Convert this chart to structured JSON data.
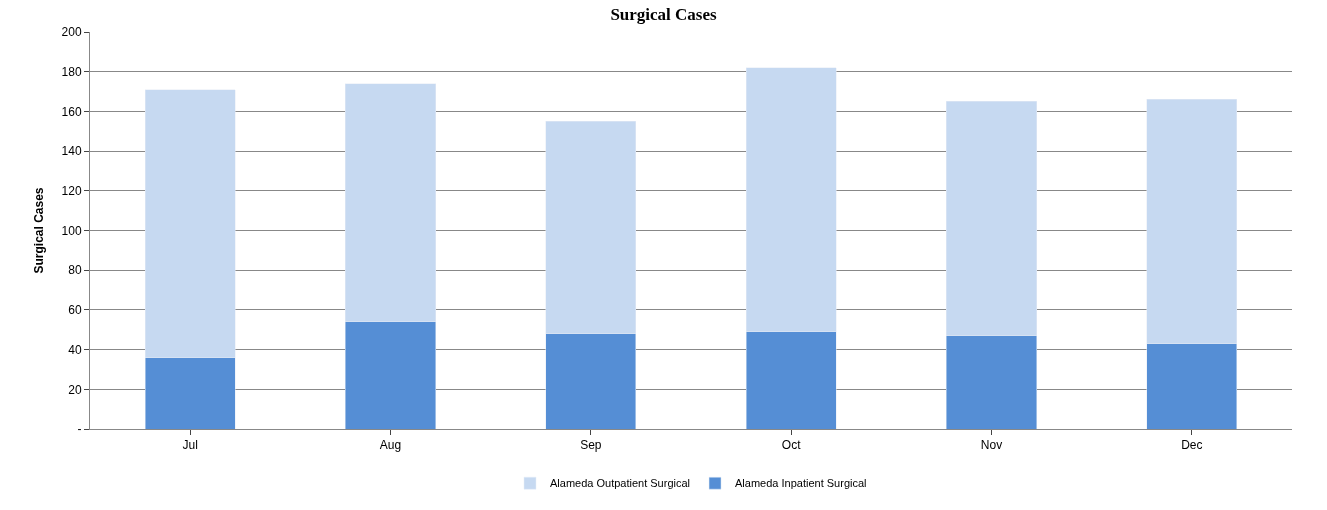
{
  "chart_data": {
    "type": "bar",
    "title": "Surgical Cases",
    "ylabel": "Surgical Cases",
    "categories": [
      "Jul",
      "Aug",
      "Sep",
      "Oct",
      "Nov",
      "Dec"
    ],
    "stacked": true,
    "series": [
      {
        "name": "Alameda Inpatient Surgical",
        "color": "#558ed5",
        "values": [
          36,
          54,
          48,
          49,
          47,
          43
        ]
      },
      {
        "name": "Alameda Outpatient Surgical",
        "color": "#c6d9f1",
        "values": [
          135,
          120,
          107,
          133,
          118,
          123
        ]
      }
    ],
    "ylim": [
      0,
      200
    ],
    "yticks": [
      {
        "value": 0,
        "label": "-"
      },
      20,
      40,
      60,
      80,
      100,
      120,
      140,
      160,
      180,
      200
    ],
    "grid": "y",
    "legend": "bottom"
  }
}
